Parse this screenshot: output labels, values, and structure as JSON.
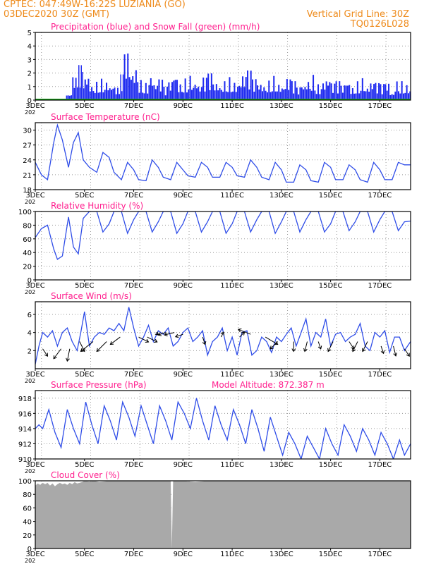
{
  "header": {
    "line1": "CPTEC:   047:49W-16:22S   LUZIANIA (GO)",
    "line2": "03DEC2020 30Z (GMT)",
    "grid_note": "Vertical Grid Line: 30Z",
    "model_code": "TQ0126L028"
  },
  "colors": {
    "header": "#ee8a1a",
    "panel_title": "#ff1f8e",
    "precip": "#1f2bf0",
    "snow": "#1aa31a",
    "line": "#2f4de8",
    "cloud": "#a9a9a9",
    "wind_arrow": "#000000"
  },
  "x_axis": {
    "tick_labels": [
      "3DEC",
      "5DEC",
      "7DEC",
      "9DEC",
      "11DEC",
      "13DEC",
      "15DEC",
      "17DEC"
    ],
    "tick_days": [
      3,
      5,
      7,
      9,
      11,
      13,
      15,
      17
    ],
    "start_day": 3,
    "end_day": 18.25,
    "year_stub": "202"
  },
  "chart_data": [
    {
      "type": "bar",
      "title": "Precipitation (blue) and Snow Fall (green) (mm/h)",
      "ylim": [
        0,
        5
      ],
      "yticks": [
        "0",
        "1",
        "2",
        "3",
        "4",
        "5"
      ],
      "grid": true,
      "series": [
        {
          "name": "Precipitation",
          "x": [
            4.25,
            4.5,
            4.75,
            4.9,
            5.0,
            5.2,
            5.4,
            5.6,
            5.8,
            6.0,
            6.2,
            6.45,
            6.6,
            6.8,
            7.0,
            7.2,
            7.4,
            7.6,
            7.8,
            8.0,
            8.2,
            8.4,
            8.6,
            8.8,
            9.0,
            9.2,
            9.4,
            9.6,
            9.8,
            10.0,
            10.2,
            10.4,
            10.6,
            10.8,
            11.0,
            11.2,
            11.4,
            11.6,
            11.8,
            12.0,
            12.2,
            12.4,
            12.6,
            12.8,
            13.0,
            13.2,
            13.4,
            13.6,
            13.8,
            14.0,
            14.2,
            14.4,
            14.6,
            14.8,
            15.0,
            15.2,
            15.4,
            15.6,
            15.8,
            16.0,
            16.2,
            16.4,
            16.6,
            16.8,
            17.0,
            17.2,
            17.4,
            17.6,
            17.8,
            18.0,
            18.2
          ],
          "values": [
            0.5,
            1.9,
            2.6,
            2.2,
            2.0,
            1.2,
            1.4,
            1.6,
            1.5,
            1.2,
            1.0,
            1.9,
            3.7,
            2.4,
            2.6,
            1.5,
            1.3,
            2.0,
            1.4,
            1.6,
            1.0,
            1.5,
            2.2,
            1.3,
            1.6,
            1.9,
            1.5,
            1.2,
            1.7,
            2.0,
            1.4,
            1.2,
            1.5,
            1.7,
            1.4,
            1.5,
            2.0,
            2.2,
            1.6,
            1.4,
            1.2,
            1.5,
            1.8,
            1.3,
            1.2,
            1.7,
            1.4,
            1.0,
            1.3,
            1.6,
            1.9,
            1.2,
            1.5,
            1.8,
            1.3,
            1.4,
            1.2,
            1.6,
            1.0,
            1.4,
            1.7,
            1.1,
            1.5,
            1.3,
            1.2,
            1.4,
            0.6,
            1.5,
            1.4,
            1.2,
            1.0
          ]
        },
        {
          "name": "Snow Fall",
          "values": [
            0
          ]
        }
      ]
    },
    {
      "type": "line",
      "title": "Surface Temperature (nC)",
      "ylim": [
        18,
        31.5
      ],
      "yticks": [
        "18",
        "21",
        "24",
        "27",
        "30"
      ],
      "grid": true,
      "series": [
        {
          "name": "Temperature",
          "x": [
            3.0,
            3.25,
            3.5,
            3.75,
            3.9,
            4.1,
            4.35,
            4.55,
            4.75,
            4.95,
            5.2,
            5.5,
            5.75,
            6.0,
            6.2,
            6.5,
            6.75,
            7.0,
            7.2,
            7.5,
            7.75,
            8.0,
            8.2,
            8.5,
            8.75,
            9.0,
            9.2,
            9.5,
            9.75,
            10.0,
            10.2,
            10.5,
            10.75,
            11.0,
            11.2,
            11.5,
            11.75,
            12.0,
            12.2,
            12.5,
            12.75,
            13.0,
            13.2,
            13.5,
            13.75,
            14.0,
            14.2,
            14.5,
            14.75,
            15.0,
            15.2,
            15.5,
            15.75,
            16.0,
            16.2,
            16.5,
            16.75,
            17.0,
            17.2,
            17.5,
            17.75,
            18.0,
            18.25
          ],
          "values": [
            23.5,
            21.0,
            20.0,
            27.5,
            31.0,
            28.0,
            22.5,
            27.5,
            29.5,
            24.0,
            22.5,
            21.5,
            25.5,
            24.5,
            21.5,
            20.0,
            23.5,
            22.0,
            20.0,
            19.8,
            24.0,
            22.5,
            20.5,
            20.0,
            23.5,
            22.0,
            20.8,
            20.5,
            23.5,
            22.5,
            20.5,
            20.5,
            23.5,
            22.5,
            20.8,
            20.5,
            24.0,
            22.5,
            20.5,
            20.0,
            23.5,
            22.0,
            19.5,
            19.5,
            23.0,
            22.0,
            19.8,
            19.5,
            23.5,
            22.5,
            20.0,
            20.0,
            23.0,
            22.0,
            20.0,
            19.5,
            23.5,
            22.0,
            20.0,
            20.0,
            23.5,
            23.0,
            23.0
          ]
        }
      ]
    },
    {
      "type": "line",
      "title": "Relative Humidity (%)",
      "ylim": [
        0,
        100
      ],
      "yticks": [
        "0",
        "20",
        "40",
        "60",
        "80",
        "100"
      ],
      "grid": true,
      "series": [
        {
          "name": "Relative Humidity",
          "x": [
            3.0,
            3.25,
            3.5,
            3.75,
            3.9,
            4.1,
            4.35,
            4.55,
            4.75,
            4.95,
            5.2,
            5.5,
            5.75,
            6.0,
            6.2,
            6.5,
            6.75,
            7.0,
            7.2,
            7.5,
            7.75,
            8.0,
            8.2,
            8.5,
            8.75,
            9.0,
            9.2,
            9.5,
            9.75,
            10.0,
            10.2,
            10.5,
            10.75,
            11.0,
            11.2,
            11.5,
            11.75,
            12.0,
            12.2,
            12.5,
            12.75,
            13.0,
            13.2,
            13.5,
            13.75,
            14.0,
            14.2,
            14.5,
            14.75,
            15.0,
            15.2,
            15.5,
            15.75,
            16.0,
            16.2,
            16.5,
            16.75,
            17.0,
            17.2,
            17.5,
            17.75,
            18.0,
            18.25
          ],
          "values": [
            62,
            75,
            80,
            45,
            30,
            35,
            92,
            48,
            38,
            90,
            100,
            100,
            70,
            82,
            100,
            100,
            68,
            88,
            100,
            100,
            70,
            85,
            100,
            100,
            68,
            82,
            100,
            100,
            70,
            85,
            100,
            100,
            68,
            82,
            100,
            100,
            70,
            88,
            100,
            100,
            68,
            85,
            100,
            100,
            70,
            88,
            100,
            100,
            70,
            82,
            100,
            100,
            72,
            85,
            100,
            100,
            70,
            88,
            100,
            100,
            72,
            85,
            86
          ]
        }
      ]
    },
    {
      "type": "line",
      "title": "Surface Wind (m/s)",
      "ylim": [
        0,
        7.4
      ],
      "yticks": [
        "2",
        "4",
        "6"
      ],
      "grid": true,
      "series": [
        {
          "name": "Wind speed",
          "x": [
            3.0,
            3.15,
            3.3,
            3.5,
            3.7,
            3.9,
            4.1,
            4.3,
            4.5,
            4.7,
            4.85,
            5.0,
            5.2,
            5.4,
            5.6,
            5.8,
            6.0,
            6.2,
            6.4,
            6.6,
            6.8,
            7.0,
            7.2,
            7.4,
            7.6,
            7.8,
            8.0,
            8.2,
            8.4,
            8.6,
            8.8,
            9.0,
            9.2,
            9.4,
            9.6,
            9.8,
            10.0,
            10.2,
            10.4,
            10.6,
            10.8,
            11.0,
            11.2,
            11.4,
            11.6,
            11.8,
            12.0,
            12.2,
            12.4,
            12.6,
            12.8,
            13.0,
            13.2,
            13.4,
            13.6,
            13.8,
            14.0,
            14.2,
            14.4,
            14.6,
            14.8,
            15.0,
            15.2,
            15.4,
            15.6,
            15.8,
            16.0,
            16.2,
            16.4,
            16.6,
            16.8,
            17.0,
            17.2,
            17.4,
            17.6,
            17.8,
            18.0,
            18.25
          ],
          "values": [
            0.5,
            2.5,
            4.0,
            3.5,
            4.2,
            2.5,
            4.0,
            4.5,
            3.0,
            2.0,
            4.0,
            6.3,
            2.5,
            3.5,
            4.0,
            3.8,
            4.5,
            4.2,
            5.0,
            4.2,
            6.8,
            4.5,
            2.5,
            3.5,
            4.8,
            3.0,
            4.2,
            3.8,
            4.5,
            2.5,
            3.0,
            4.0,
            4.5,
            3.0,
            3.5,
            4.2,
            1.5,
            3.0,
            3.5,
            4.5,
            2.0,
            3.5,
            1.5,
            4.0,
            4.2,
            1.5,
            2.0,
            3.5,
            3.0,
            1.8,
            3.5,
            3.0,
            3.8,
            4.5,
            2.5,
            4.0,
            5.5,
            2.5,
            4.0,
            3.5,
            5.5,
            2.5,
            3.8,
            4.0,
            3.0,
            3.5,
            3.8,
            5.0,
            2.5,
            2.0,
            4.0,
            3.5,
            4.2,
            1.8,
            3.5,
            3.5,
            2.0,
            3.0
          ]
        }
      ],
      "vectors": {
        "x": [
          3.3,
          4.05,
          4.4,
          4.8,
          5.35,
          5.9,
          6.45,
          7.2,
          7.55,
          7.9,
          8.3,
          8.65,
          9.0,
          9.8,
          10.55,
          11.3,
          11.75,
          12.35,
          12.85,
          13.5,
          14.05,
          14.5,
          15.1,
          15.75,
          16.1,
          16.5,
          17.05,
          17.55,
          18.0
        ],
        "y": [
          2.2,
          2.2,
          2.2,
          3.0,
          3.0,
          3.0,
          3.5,
          3.5,
          3.5,
          4.0,
          4.0,
          4.0,
          3.8,
          3.5,
          3.5,
          3.5,
          3.8,
          3.5,
          3.0,
          3.0,
          3.0,
          3.0,
          3.0,
          3.0,
          3.0,
          3.0,
          2.5,
          2.5,
          2.2
        ],
        "u": [
          1.0,
          -1.5,
          -0.5,
          1.0,
          -2.5,
          -2.0,
          -2.0,
          2.0,
          2.0,
          0.5,
          -1.5,
          -2.0,
          -1.5,
          0.5,
          0.5,
          1.0,
          -2.5,
          2.5,
          -1.5,
          0.0,
          -0.5,
          0.5,
          -1.0,
          1.0,
          -1.0,
          -1.0,
          0.5,
          0.5,
          1.0
        ],
        "v": [
          1.5,
          2.0,
          2.5,
          2.0,
          2.0,
          2.0,
          1.5,
          1.0,
          1.0,
          0.5,
          0.5,
          0.5,
          0.5,
          1.5,
          -1.0,
          -1.0,
          -1.0,
          1.5,
          1.5,
          2.0,
          2.0,
          1.5,
          2.0,
          1.5,
          2.0,
          2.0,
          1.5,
          2.0,
          1.5
        ]
      }
    },
    {
      "type": "line",
      "title": "Surface Pressure (hPa)",
      "subtitle": "Model Altitude: 872.387 m",
      "ylim": [
        910,
        919
      ],
      "yticks": [
        "910",
        "912",
        "914",
        "916",
        "918"
      ],
      "grid": true,
      "series": [
        {
          "name": "Pressure",
          "x": [
            3.0,
            3.15,
            3.3,
            3.55,
            3.8,
            4.05,
            4.3,
            4.55,
            4.8,
            5.05,
            5.3,
            5.55,
            5.8,
            6.05,
            6.3,
            6.55,
            6.8,
            7.05,
            7.3,
            7.55,
            7.8,
            8.05,
            8.3,
            8.55,
            8.8,
            9.05,
            9.3,
            9.55,
            9.8,
            10.05,
            10.3,
            10.55,
            10.8,
            11.05,
            11.3,
            11.55,
            11.8,
            12.05,
            12.3,
            12.55,
            12.8,
            13.05,
            13.3,
            13.55,
            13.8,
            14.05,
            14.3,
            14.55,
            14.8,
            15.05,
            15.3,
            15.55,
            15.8,
            16.05,
            16.3,
            16.55,
            16.8,
            17.05,
            17.3,
            17.55,
            17.8,
            18.0,
            18.25
          ],
          "values": [
            914.0,
            914.5,
            914.0,
            916.5,
            913.5,
            911.5,
            916.5,
            914.0,
            912.0,
            917.5,
            914.5,
            912.0,
            917.0,
            915.0,
            912.5,
            917.5,
            915.5,
            913.0,
            917.0,
            914.5,
            912.0,
            917.0,
            915.0,
            912.5,
            917.5,
            916.0,
            914.0,
            918.0,
            915.0,
            912.5,
            917.0,
            914.5,
            912.5,
            916.5,
            914.5,
            912.0,
            916.5,
            914.0,
            911.0,
            915.5,
            913.0,
            910.5,
            913.5,
            912.0,
            910.0,
            913.0,
            911.5,
            910.0,
            914.0,
            912.0,
            910.5,
            914.5,
            913.0,
            911.0,
            914.0,
            912.5,
            910.5,
            913.5,
            912.0,
            910.0,
            912.5,
            910.5,
            912.0
          ]
        }
      ]
    },
    {
      "type": "area",
      "title": "Cloud Cover (%)",
      "ylim": [
        0,
        100
      ],
      "yticks": [
        "0",
        "20",
        "40",
        "60",
        "80",
        "100"
      ],
      "grid": true,
      "series": [
        {
          "name": "Cloud Cover",
          "x": [
            3.0,
            3.1,
            3.2,
            3.3,
            3.4,
            3.5,
            3.6,
            3.7,
            3.8,
            3.9,
            4.0,
            4.1,
            4.2,
            4.3,
            4.4,
            4.5,
            4.6,
            4.7,
            4.8,
            4.9,
            5.0,
            5.2,
            5.4,
            5.6,
            5.8,
            6.0,
            6.5,
            7.0,
            7.5,
            8.0,
            8.4,
            8.5,
            8.55,
            8.6,
            9.0,
            9.5,
            10.0,
            11.0,
            12.0,
            13.0,
            14.0,
            15.0,
            16.0,
            17.0,
            18.0,
            18.25
          ],
          "values": [
            93,
            96,
            94,
            97,
            95,
            97,
            93,
            96,
            92,
            95,
            97,
            95,
            96,
            94,
            97,
            95,
            98,
            96,
            97,
            98,
            100,
            99,
            100,
            98,
            99,
            100,
            100,
            100,
            100,
            100,
            100,
            100,
            0,
            100,
            100,
            98,
            100,
            100,
            100,
            100,
            100,
            100,
            100,
            100,
            100,
            100
          ]
        }
      ]
    }
  ]
}
